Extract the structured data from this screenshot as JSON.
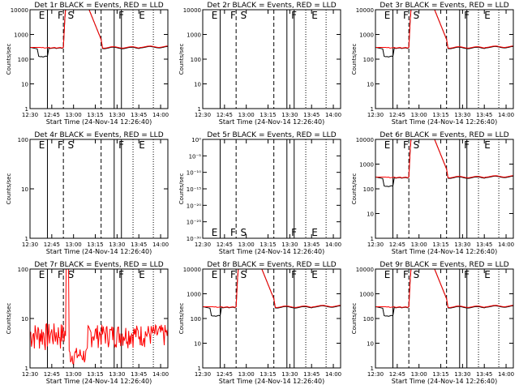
{
  "figure": {
    "type": "detector-lightcurve-grid",
    "background": "#ffffff"
  },
  "chart_data": [
    {
      "type": "line",
      "title": "Det 1r BLACK = Events, RED = LLD",
      "ylabel": "Counts/sec",
      "xlabel": "Start Time (24-Nov-14 12:26:40)",
      "x_ticks": [
        "12:30",
        "12:45",
        "13:00",
        "13:15",
        "13:30",
        "13:45",
        "14:00"
      ],
      "y_ticks": [
        "1",
        "10",
        "100",
        "1000",
        "10000"
      ],
      "ylim": [
        1,
        10000
      ],
      "yscale": "log",
      "marker_labels": [
        "E",
        "F",
        "S",
        "F",
        "E"
      ],
      "profile": "flare",
      "series": [
        {
          "name": "Events",
          "color": "#000000"
        },
        {
          "name": "LLD",
          "color": "#ff0000"
        }
      ]
    },
    {
      "type": "line",
      "title": "Det 2r BLACK = Events, RED = LLD",
      "ylabel": "Counts/sec",
      "xlabel": "Start Time (24-Nov-14 12:26:40)",
      "x_ticks": [
        "12:30",
        "12:45",
        "13:00",
        "13:15",
        "13:30",
        "13:45",
        "14:00"
      ],
      "y_ticks": [
        "1",
        "10",
        "100",
        "1000",
        "10000"
      ],
      "ylim": [
        1,
        10000
      ],
      "yscale": "log",
      "marker_labels": [
        "E",
        "F",
        "S",
        "F",
        "E"
      ],
      "profile": "none",
      "series": []
    },
    {
      "type": "line",
      "title": "Det 3r BLACK = Events, RED = LLD",
      "ylabel": "Counts/sec",
      "xlabel": "Start Time (24-Nov-14 12:26:40)",
      "x_ticks": [
        "12:30",
        "12:45",
        "13:00",
        "13:15",
        "13:30",
        "13:45",
        "14:00"
      ],
      "y_ticks": [
        "1",
        "10",
        "100",
        "1000",
        "10000"
      ],
      "ylim": [
        1,
        10000
      ],
      "yscale": "log",
      "marker_labels": [
        "E",
        "F",
        "S",
        "F",
        "E"
      ],
      "profile": "flare",
      "series": [
        {
          "name": "Events",
          "color": "#000000"
        },
        {
          "name": "LLD",
          "color": "#ff0000"
        }
      ]
    },
    {
      "type": "line",
      "title": "Det 4r BLACK = Events, RED = LLD",
      "ylabel": "Counts/sec",
      "xlabel": "Start Time (24-Nov-14 12:26:40)",
      "x_ticks": [
        "12:30",
        "12:45",
        "13:00",
        "13:15",
        "13:30",
        "13:45",
        "14:00"
      ],
      "y_ticks": [
        "1",
        "10",
        "100"
      ],
      "ylim": [
        1,
        100
      ],
      "yscale": "log",
      "marker_labels": [
        "E",
        "F",
        "S",
        "F",
        "E"
      ],
      "profile": "none",
      "series": []
    },
    {
      "type": "line",
      "title": "Det 5r BLACK = Events, RED = LLD",
      "ylabel": "Counts/sec",
      "xlabel": "Start Time (24-Nov-14 12:26:40)",
      "x_ticks": [
        "12:30",
        "12:45",
        "13:00",
        "13:15",
        "13:30",
        "13:45",
        "14:00"
      ],
      "y_ticks": [
        "10⁻³⁰",
        "10⁻²⁵",
        "10⁻²⁰",
        "10⁻¹⁵",
        "10⁻¹⁰",
        "10⁻⁵",
        "10⁰"
      ],
      "ylim": [
        1e-30,
        1
      ],
      "yscale": "log",
      "marker_labels": [
        "E",
        "F",
        "S",
        "F",
        "E"
      ],
      "profile": "none",
      "series": []
    },
    {
      "type": "line",
      "title": "Det 6r BLACK = Events, RED = LLD",
      "ylabel": "Counts/sec",
      "xlabel": "Start Time (24-Nov-14 12:26:40)",
      "x_ticks": [
        "12:30",
        "12:45",
        "13:00",
        "13:15",
        "13:30",
        "13:45",
        "14:00"
      ],
      "y_ticks": [
        "1",
        "10",
        "100",
        "1000",
        "10000"
      ],
      "ylim": [
        1,
        10000
      ],
      "yscale": "log",
      "marker_labels": [
        "E",
        "F",
        "S",
        "F",
        "E"
      ],
      "profile": "flare",
      "series": [
        {
          "name": "Events",
          "color": "#000000"
        },
        {
          "name": "LLD",
          "color": "#ff0000"
        }
      ]
    },
    {
      "type": "line",
      "title": "Det 7r BLACK = Events, RED = LLD",
      "ylabel": "Counts/sec",
      "xlabel": "Start Time (24-Nov-14 12:26:40)",
      "x_ticks": [
        "12:30",
        "12:45",
        "13:00",
        "13:15",
        "13:30",
        "13:45",
        "14:00"
      ],
      "y_ticks": [
        "1",
        "10",
        "100"
      ],
      "ylim": [
        1,
        100
      ],
      "yscale": "log",
      "marker_labels": [
        "E",
        "F",
        "S",
        "F",
        "E"
      ],
      "profile": "noisy",
      "series": [
        {
          "name": "Events",
          "color": "#000000"
        },
        {
          "name": "LLD",
          "color": "#ff0000"
        }
      ]
    },
    {
      "type": "line",
      "title": "Det 8r BLACK = Events, RED = LLD",
      "ylabel": "Counts/sec",
      "xlabel": "Start Time (24-Nov-14 12:26:40)",
      "x_ticks": [
        "12:30",
        "12:45",
        "13:00",
        "13:15",
        "13:30",
        "13:45",
        "14:00"
      ],
      "y_ticks": [
        "1",
        "10",
        "100",
        "1000",
        "10000"
      ],
      "ylim": [
        1,
        10000
      ],
      "yscale": "log",
      "marker_labels": [
        "E",
        "F",
        "S",
        "F",
        "E"
      ],
      "profile": "flare",
      "series": [
        {
          "name": "Events",
          "color": "#000000"
        },
        {
          "name": "LLD",
          "color": "#ff0000"
        }
      ]
    },
    {
      "type": "line",
      "title": "Det 9r BLACK = Events, RED = LLD",
      "ylabel": "Counts/sec",
      "xlabel": "Start Time (24-Nov-14 12:26:40)",
      "x_ticks": [
        "12:30",
        "12:45",
        "13:00",
        "13:15",
        "13:30",
        "13:45",
        "14:00"
      ],
      "y_ticks": [
        "1",
        "10",
        "100",
        "1000",
        "10000"
      ],
      "ylim": [
        1,
        10000
      ],
      "yscale": "log",
      "marker_labels": [
        "E",
        "F",
        "S",
        "F",
        "E"
      ],
      "profile": "flare",
      "series": [
        {
          "name": "Events",
          "color": "#000000"
        },
        {
          "name": "LLD",
          "color": "#ff0000"
        }
      ]
    }
  ]
}
